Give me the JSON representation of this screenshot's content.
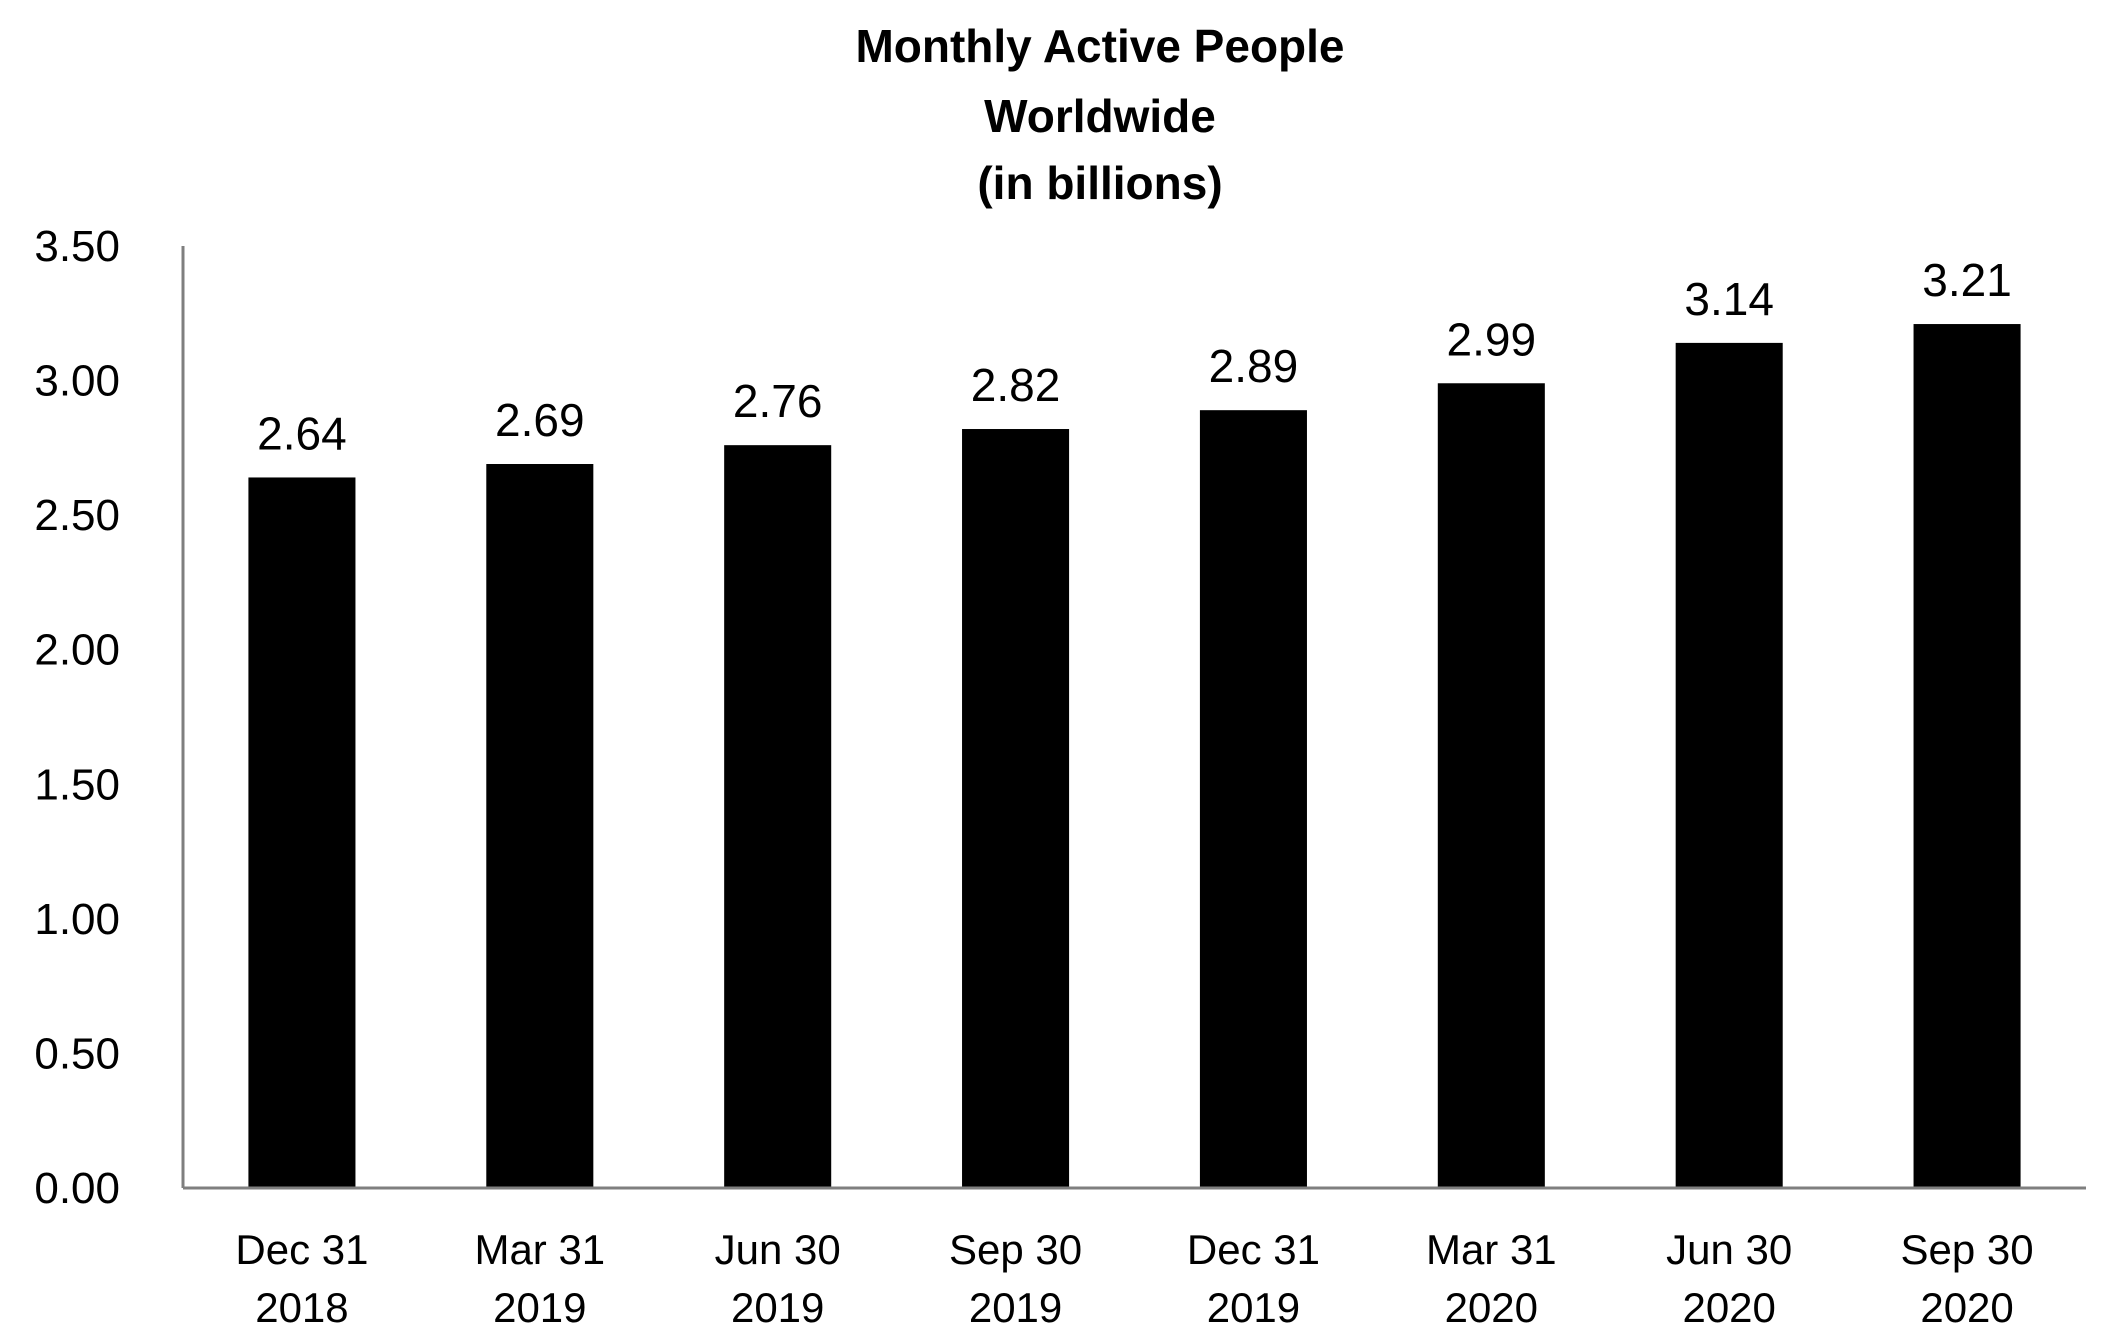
{
  "chart_data": {
    "type": "bar",
    "title_lines": [
      "Monthly Active People",
      "Worldwide",
      "(in billions)"
    ],
    "categories": [
      [
        "Dec 31",
        "2018"
      ],
      [
        "Mar 31",
        "2019"
      ],
      [
        "Jun 30",
        "2019"
      ],
      [
        "Sep 30",
        "2019"
      ],
      [
        "Dec 31",
        "2019"
      ],
      [
        "Mar 31",
        "2020"
      ],
      [
        "Jun 30",
        "2020"
      ],
      [
        "Sep 30",
        "2020"
      ]
    ],
    "values": [
      2.64,
      2.69,
      2.76,
      2.82,
      2.89,
      2.99,
      3.14,
      3.21
    ],
    "data_labels": [
      "2.64",
      "2.69",
      "2.76",
      "2.82",
      "2.89",
      "2.99",
      "3.14",
      "3.21"
    ],
    "ylim": [
      0,
      3.5
    ],
    "yticks": [
      0,
      0.5,
      1,
      1.5,
      2,
      2.5,
      3,
      3.5
    ],
    "ytick_labels": [
      "0.00",
      "0.50",
      "1.00",
      "1.50",
      "2.00",
      "2.50",
      "3.00",
      "3.50"
    ],
    "bar_color": "#000000",
    "axis_color": "#7f7f7f",
    "grid": false,
    "legend": "none"
  }
}
